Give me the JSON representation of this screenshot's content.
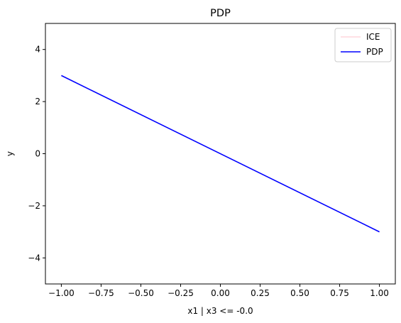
{
  "chart_data": {
    "type": "line",
    "title": "PDP",
    "xlabel": "x1 | x3 <= -0.0",
    "ylabel": "y",
    "xlim": [
      -1.1,
      1.1
    ],
    "ylim": [
      -5,
      5
    ],
    "xticks": [
      -1.0,
      -0.75,
      -0.5,
      -0.25,
      0.0,
      0.25,
      0.5,
      0.75,
      1.0
    ],
    "xtick_labels": [
      "−1.00",
      "−0.75",
      "−0.50",
      "−0.25",
      "0.00",
      "0.25",
      "0.50",
      "0.75",
      "1.00"
    ],
    "yticks": [
      -4,
      -2,
      0,
      2,
      4
    ],
    "ytick_labels": [
      "−4",
      "−2",
      "0",
      "2",
      "4"
    ],
    "grid": false,
    "legend_position": "top-right",
    "series": [
      {
        "name": "ICE",
        "color": "#ffc0cb",
        "x": [
          -1.0,
          1.0
        ],
        "y": [
          3.0,
          -3.0
        ]
      },
      {
        "name": "PDP",
        "color": "#0000ff",
        "x": [
          -1.0,
          1.0
        ],
        "y": [
          3.0,
          -3.0
        ]
      }
    ]
  }
}
